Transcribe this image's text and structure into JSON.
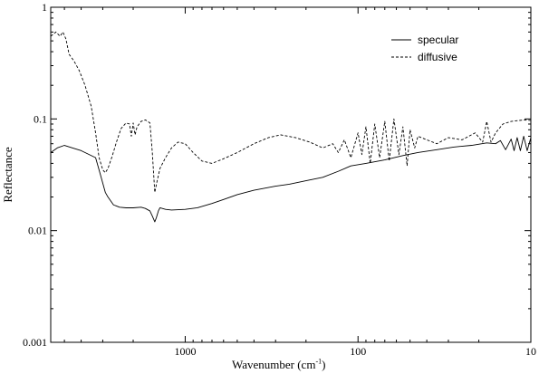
{
  "chart_data": {
    "type": "line",
    "title": "",
    "xlabel": "Wavenumber (cm",
    "xlabel_superscript": "-1",
    "xlabel_close": ")",
    "ylabel": "Reflectance",
    "x_scale": "log",
    "x_reversed": true,
    "y_scale": "log",
    "xlim": [
      6000,
      10
    ],
    "ylim": [
      0.001,
      1
    ],
    "xticks": [
      {
        "value": 1000,
        "label": "1000"
      },
      {
        "value": 100,
        "label": "100"
      },
      {
        "value": 10,
        "label": "10"
      }
    ],
    "yticks": [
      {
        "value": 1,
        "label": "1"
      },
      {
        "value": 0.1,
        "label": "0.1"
      },
      {
        "value": 0.01,
        "label": "0.01"
      },
      {
        "value": 0.001,
        "label": "0.001"
      }
    ],
    "grid": false,
    "legend": {
      "placement": "top-right",
      "entries": [
        {
          "name": "specular",
          "style": "solid"
        },
        {
          "name": "diffusive",
          "style": "dashed"
        }
      ]
    },
    "series": [
      {
        "name": "specular",
        "style": "solid",
        "color": "#000000",
        "points": [
          [
            6000,
            0.05
          ],
          [
            5500,
            0.055
          ],
          [
            5000,
            0.058
          ],
          [
            4500,
            0.055
          ],
          [
            4000,
            0.052
          ],
          [
            3600,
            0.048
          ],
          [
            3300,
            0.045
          ],
          [
            3100,
            0.032
          ],
          [
            2900,
            0.022
          ],
          [
            2800,
            0.02
          ],
          [
            2600,
            0.017
          ],
          [
            2400,
            0.0162
          ],
          [
            2200,
            0.016
          ],
          [
            2000,
            0.016
          ],
          [
            1800,
            0.0162
          ],
          [
            1700,
            0.0158
          ],
          [
            1600,
            0.015
          ],
          [
            1550,
            0.0135
          ],
          [
            1500,
            0.012
          ],
          [
            1470,
            0.013
          ],
          [
            1430,
            0.015
          ],
          [
            1400,
            0.016
          ],
          [
            1300,
            0.0155
          ],
          [
            1200,
            0.0153
          ],
          [
            1000,
            0.0155
          ],
          [
            850,
            0.016
          ],
          [
            700,
            0.0175
          ],
          [
            600,
            0.019
          ],
          [
            500,
            0.021
          ],
          [
            400,
            0.023
          ],
          [
            300,
            0.025
          ],
          [
            250,
            0.026
          ],
          [
            200,
            0.028
          ],
          [
            160,
            0.03
          ],
          [
            130,
            0.034
          ],
          [
            110,
            0.038
          ],
          [
            90,
            0.04
          ],
          [
            70,
            0.043
          ],
          [
            55,
            0.047
          ],
          [
            45,
            0.05
          ],
          [
            35,
            0.053
          ],
          [
            28,
            0.056
          ],
          [
            22,
            0.058
          ],
          [
            18,
            0.061
          ],
          [
            16,
            0.06
          ],
          [
            15,
            0.064
          ],
          [
            14,
            0.053
          ],
          [
            13,
            0.066
          ],
          [
            12.5,
            0.052
          ],
          [
            12,
            0.068
          ],
          [
            11.5,
            0.052
          ],
          [
            11,
            0.07
          ],
          [
            10.5,
            0.052
          ],
          [
            10,
            0.068
          ]
        ]
      },
      {
        "name": "diffusive",
        "style": "dashed",
        "color": "#000000",
        "points": [
          [
            6000,
            0.55
          ],
          [
            5600,
            0.6
          ],
          [
            5300,
            0.55
          ],
          [
            5100,
            0.6
          ],
          [
            4900,
            0.52
          ],
          [
            4700,
            0.38
          ],
          [
            4400,
            0.33
          ],
          [
            4100,
            0.27
          ],
          [
            3800,
            0.2
          ],
          [
            3500,
            0.13
          ],
          [
            3300,
            0.075
          ],
          [
            3150,
            0.045
          ],
          [
            3000,
            0.035
          ],
          [
            2900,
            0.033
          ],
          [
            2800,
            0.036
          ],
          [
            2650,
            0.046
          ],
          [
            2500,
            0.062
          ],
          [
            2350,
            0.082
          ],
          [
            2200,
            0.092
          ],
          [
            2100,
            0.09
          ],
          [
            2050,
            0.07
          ],
          [
            2000,
            0.092
          ],
          [
            1950,
            0.072
          ],
          [
            1900,
            0.085
          ],
          [
            1800,
            0.095
          ],
          [
            1700,
            0.098
          ],
          [
            1600,
            0.092
          ],
          [
            1550,
            0.05
          ],
          [
            1500,
            0.022
          ],
          [
            1460,
            0.027
          ],
          [
            1400,
            0.036
          ],
          [
            1300,
            0.045
          ],
          [
            1200,
            0.055
          ],
          [
            1100,
            0.062
          ],
          [
            1000,
            0.06
          ],
          [
            900,
            0.05
          ],
          [
            800,
            0.042
          ],
          [
            700,
            0.04
          ],
          [
            600,
            0.044
          ],
          [
            500,
            0.05
          ],
          [
            400,
            0.06
          ],
          [
            330,
            0.068
          ],
          [
            280,
            0.072
          ],
          [
            230,
            0.068
          ],
          [
            190,
            0.062
          ],
          [
            160,
            0.055
          ],
          [
            140,
            0.06
          ],
          [
            130,
            0.05
          ],
          [
            120,
            0.065
          ],
          [
            110,
            0.045
          ],
          [
            100,
            0.075
          ],
          [
            95,
            0.048
          ],
          [
            90,
            0.085
          ],
          [
            85,
            0.04
          ],
          [
            80,
            0.09
          ],
          [
            75,
            0.045
          ],
          [
            70,
            0.095
          ],
          [
            66,
            0.042
          ],
          [
            62,
            0.1
          ],
          [
            58,
            0.048
          ],
          [
            55,
            0.085
          ],
          [
            52,
            0.038
          ],
          [
            50,
            0.08
          ],
          [
            47,
            0.055
          ],
          [
            45,
            0.07
          ],
          [
            40,
            0.065
          ],
          [
            35,
            0.06
          ],
          [
            30,
            0.068
          ],
          [
            25,
            0.065
          ],
          [
            21,
            0.075
          ],
          [
            19,
            0.062
          ],
          [
            18,
            0.095
          ],
          [
            17,
            0.062
          ],
          [
            16,
            0.075
          ],
          [
            14.5,
            0.09
          ],
          [
            13,
            0.095
          ],
          [
            11,
            0.098
          ],
          [
            10,
            0.097
          ]
        ]
      }
    ]
  }
}
